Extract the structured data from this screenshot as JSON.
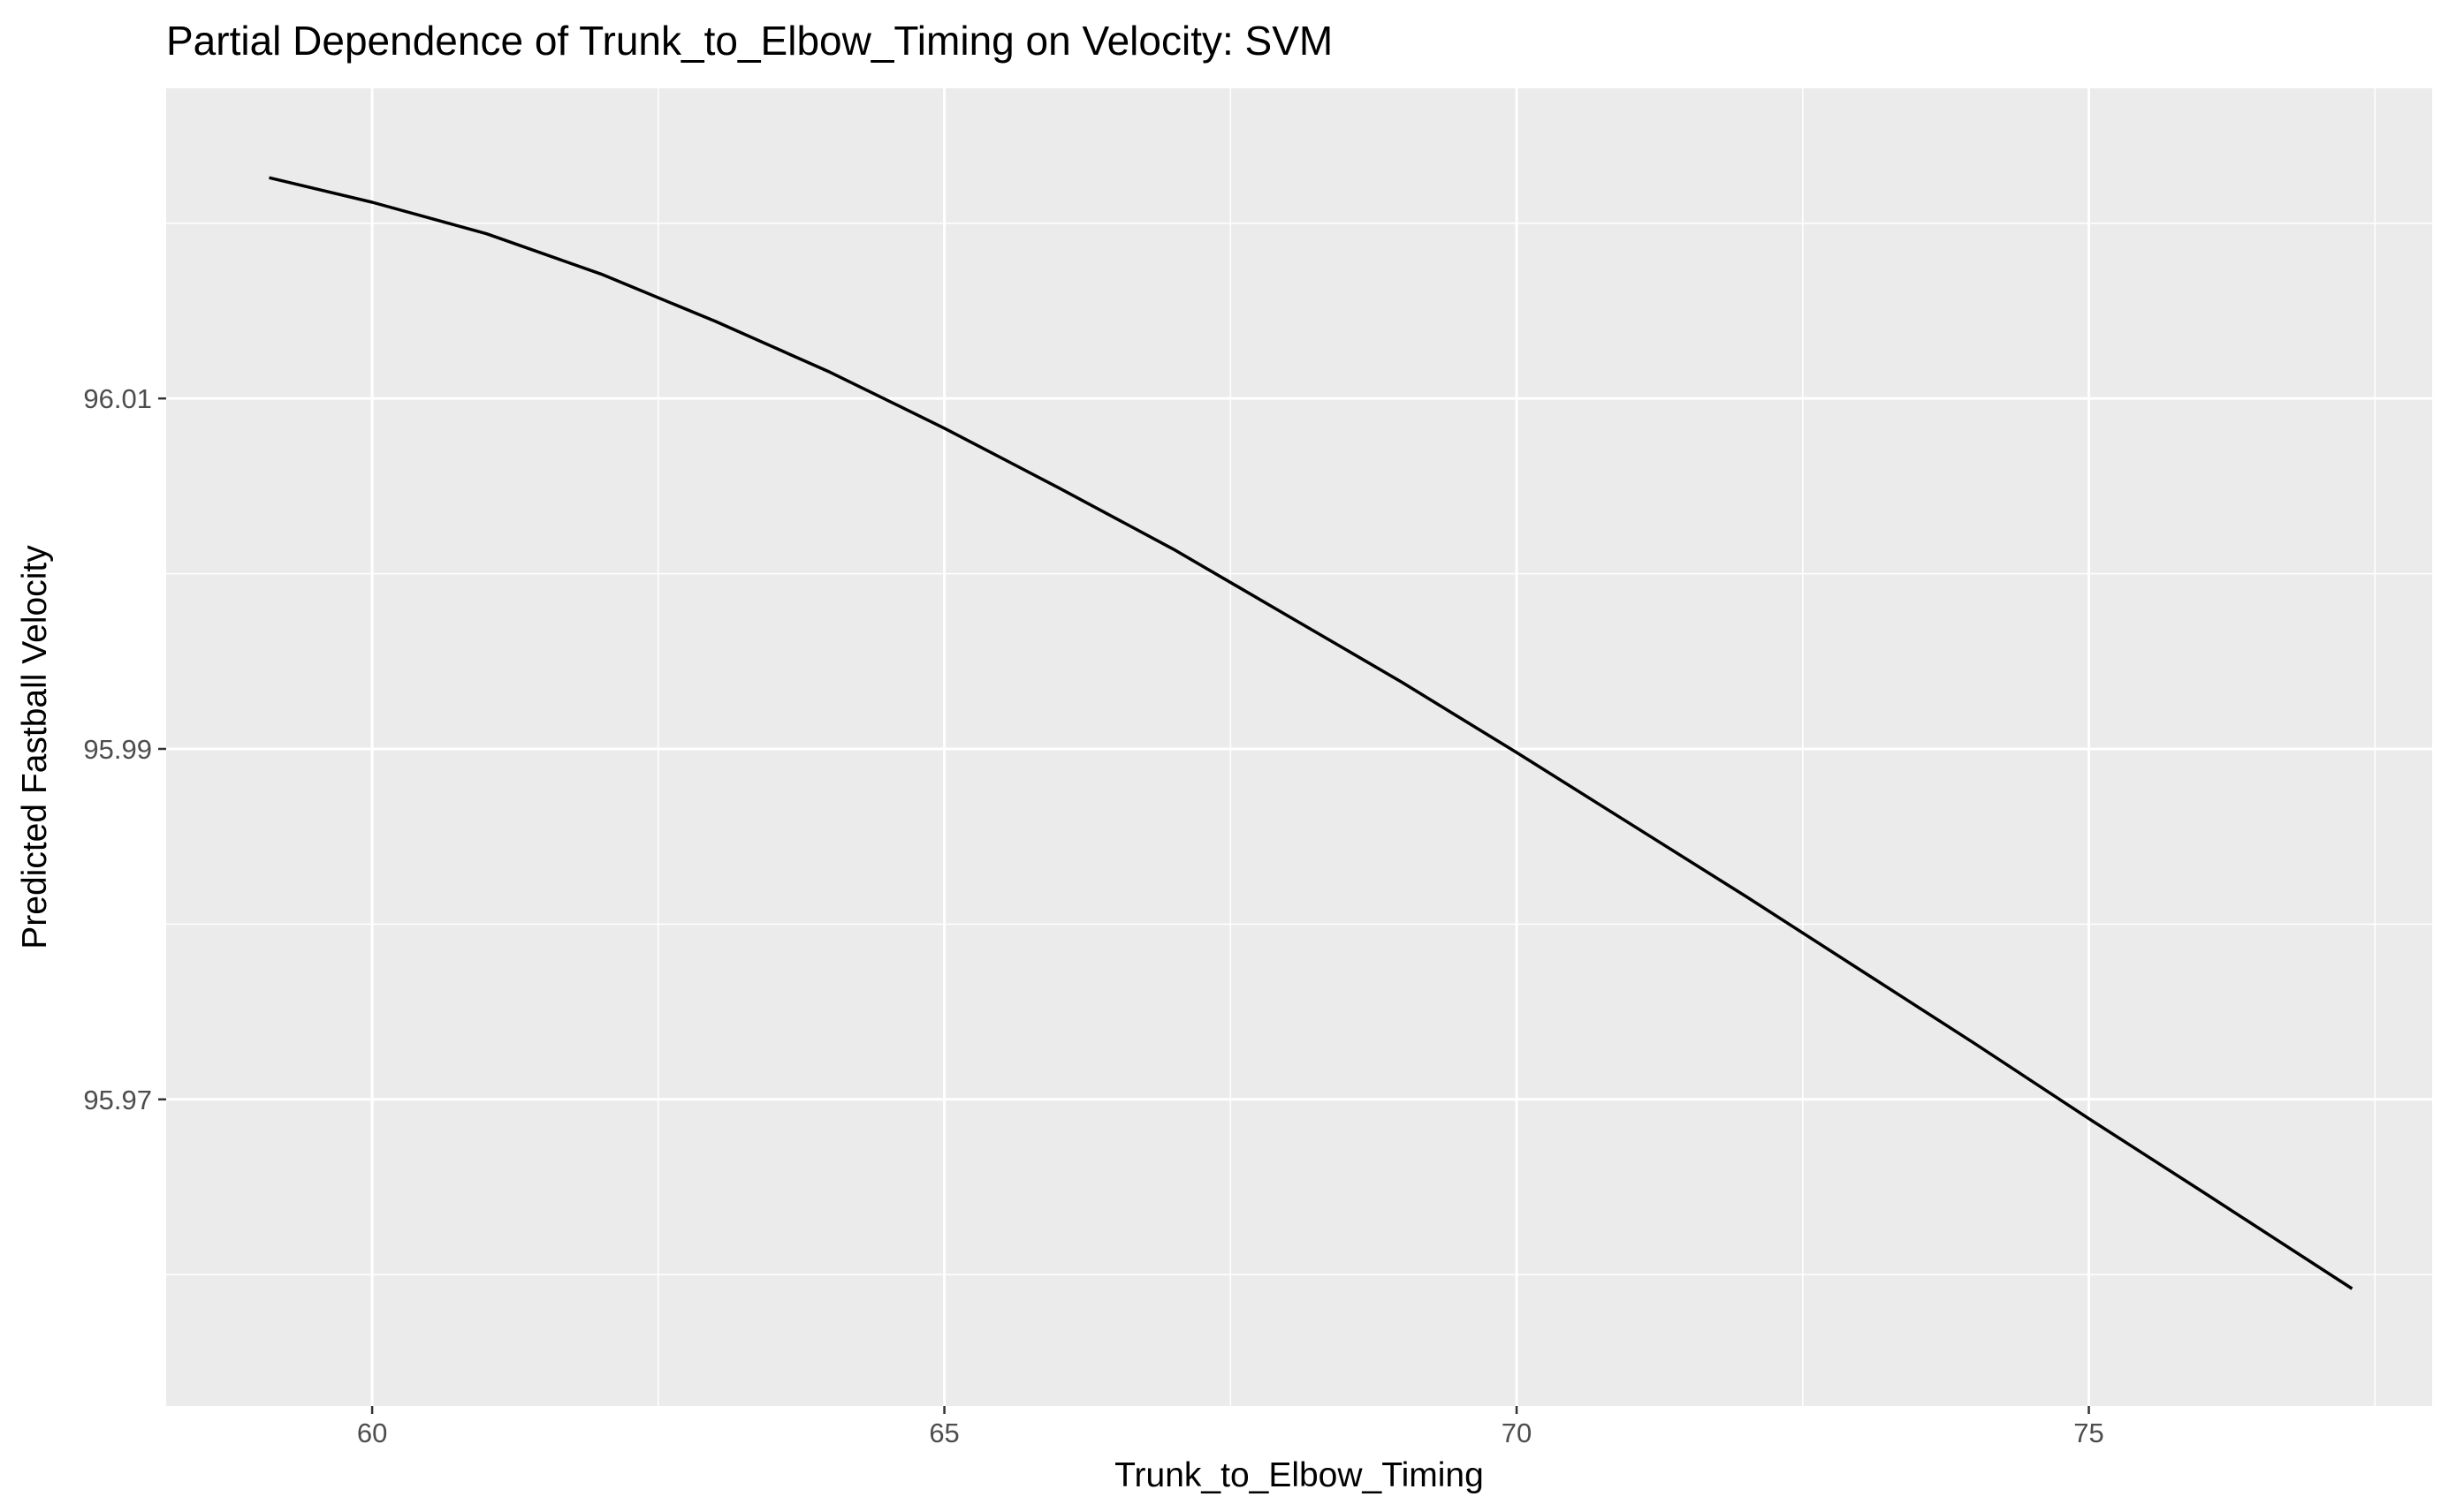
{
  "chart_data": {
    "type": "line",
    "title": "Partial Dependence of Trunk_to_Elbow_Timing on Velocity: SVM",
    "xlabel": "Trunk_to_Elbow_Timing",
    "ylabel": "Predicted Fastball Velocity",
    "xlim": [
      58.2,
      78.0
    ],
    "ylim": [
      95.9525,
      96.0277
    ],
    "x_ticks": [
      60,
      65,
      70,
      75
    ],
    "x_tick_labels": [
      "60",
      "65",
      "70",
      "75"
    ],
    "y_ticks": [
      95.97,
      95.99,
      96.01
    ],
    "y_tick_labels": [
      "95.97",
      "95.99",
      "96.01"
    ],
    "grid": true,
    "legend": "none",
    "colors": {
      "panel": "#ebebeb",
      "grid": "#ffffff",
      "line": "#000000"
    },
    "series": [
      {
        "x": [
          59.1,
          60,
          61,
          62,
          63,
          64,
          65,
          66,
          67,
          68,
          69,
          70,
          71,
          72,
          73,
          74,
          75,
          76,
          77.3
        ],
        "values": [
          96.0226,
          96.0212,
          96.0194,
          96.0171,
          96.0144,
          96.0115,
          96.0083,
          96.0049,
          96.0014,
          95.9976,
          95.9938,
          95.9898,
          95.9857,
          95.9816,
          95.9774,
          95.9732,
          95.9689,
          95.9647,
          95.9592
        ]
      }
    ]
  }
}
